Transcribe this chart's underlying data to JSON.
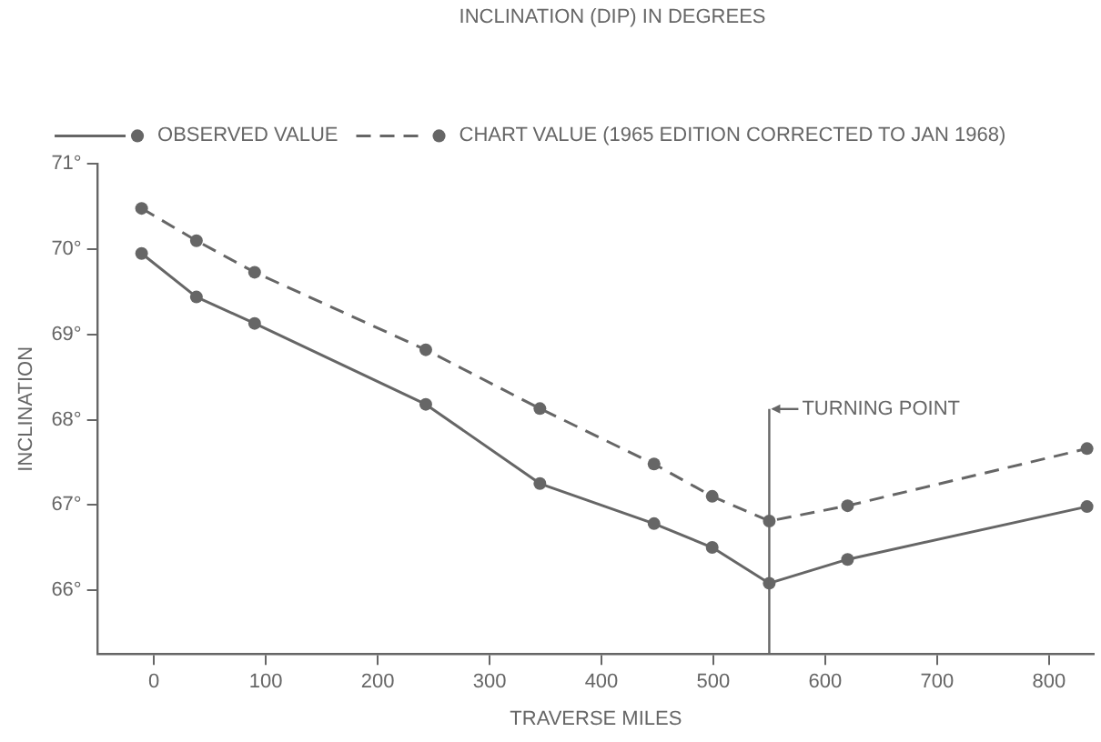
{
  "chart_data": {
    "type": "line",
    "xlabel": "TRAVERSE MILES",
    "ylabel": "INCLINATION",
    "legend_title": "INCLINATION (DIP) IN DEGREES",
    "xlim": [
      -50,
      840
    ],
    "xticks": [
      0,
      100,
      200,
      300,
      400,
      500,
      600,
      700,
      800
    ],
    "ylim": [
      65.25,
      71
    ],
    "yticks": [
      {
        "value": 66,
        "label": "66°"
      },
      {
        "value": 67,
        "label": "67°"
      },
      {
        "value": 68,
        "label": "68°"
      },
      {
        "value": 69,
        "label": "69°"
      },
      {
        "value": 70,
        "label": "70°"
      },
      {
        "value": 71,
        "label": "71°"
      }
    ],
    "series": [
      {
        "name": "OBSERVED VALUE",
        "color": "#666666",
        "line_style": "solid",
        "x": [
          -11,
          38,
          90,
          243,
          345,
          447,
          499,
          550,
          620,
          834
        ],
        "values": [
          69.95,
          69.44,
          69.13,
          68.18,
          67.25,
          66.78,
          66.5,
          66.08,
          66.36,
          66.98
        ]
      },
      {
        "name": "CHART VALUE (1965 EDITION CORRECTED TO JAN 1968)",
        "color": "#666666",
        "line_style": "dashed",
        "x": [
          -11,
          38,
          90,
          243,
          345,
          447,
          499,
          550,
          620,
          834
        ],
        "values": [
          70.48,
          70.1,
          69.73,
          68.82,
          68.13,
          67.48,
          67.1,
          66.81,
          66.99,
          67.66
        ]
      }
    ],
    "ref_lines": [
      {
        "axis": "x",
        "value": 550,
        "label": "TURNING POINT"
      }
    ],
    "marker": "circle",
    "legend": "top right",
    "grid": false
  }
}
